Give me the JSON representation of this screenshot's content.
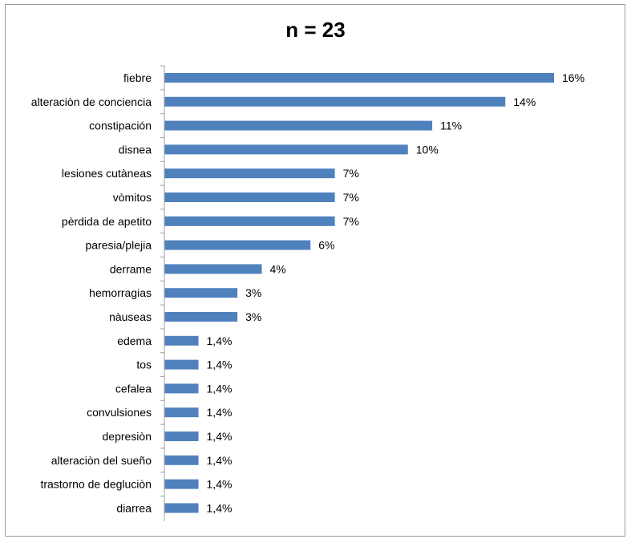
{
  "chart_data": {
    "type": "bar",
    "orientation": "horizontal",
    "title": "n = 23",
    "xlabel": "",
    "ylabel": "",
    "xlim": [
      0,
      16
    ],
    "grid": false,
    "legend": "none",
    "bar_color": "#4f81bd",
    "categories": [
      "fiebre",
      "alteraciòn de conciencia",
      "constipación",
      "disnea",
      "lesiones cutàneas",
      "vòmitos",
      "pèrdida de apetito",
      "paresia/plejia",
      "derrame",
      "hemorragias",
      "nàuseas",
      "edema",
      "tos",
      "cefalea",
      "convulsiones",
      "depresiòn",
      "alteraciòn del sueño",
      "trastorno de degluciòn",
      "diarrea"
    ],
    "values": [
      16,
      14,
      11,
      10,
      7,
      7,
      7,
      6,
      4,
      3,
      3,
      1.4,
      1.4,
      1.4,
      1.4,
      1.4,
      1.4,
      1.4,
      1.4
    ],
    "data_labels": [
      "16%",
      "14%",
      "11%",
      "10%",
      "7%",
      "7%",
      "7%",
      "6%",
      "4%",
      "3%",
      "3%",
      "1,4%",
      "1,4%",
      "1,4%",
      "1,4%",
      "1,4%",
      "1,4%",
      "1,4%",
      "1,4%"
    ]
  }
}
